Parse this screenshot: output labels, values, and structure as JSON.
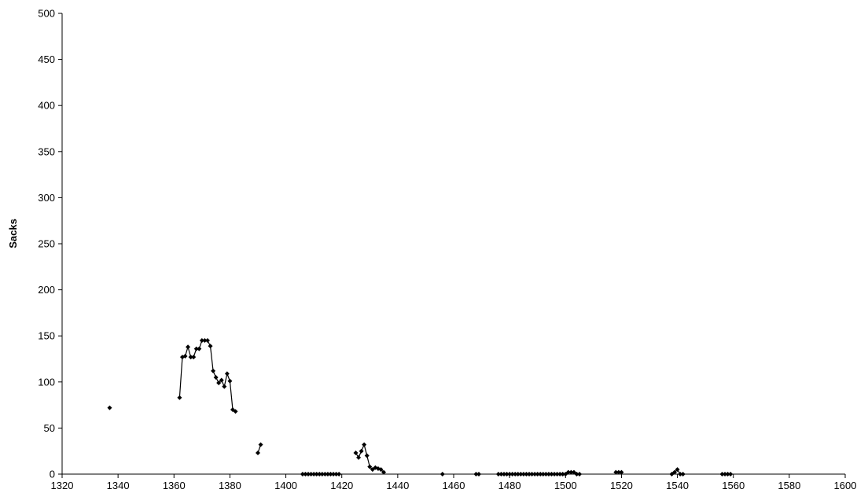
{
  "chart_data": {
    "type": "line",
    "title": "",
    "xlabel": "",
    "ylabel": "Sacks",
    "xlim": [
      1320,
      1600
    ],
    "ylim": [
      0,
      500
    ],
    "x_ticks": [
      1320,
      1340,
      1360,
      1380,
      1400,
      1420,
      1440,
      1460,
      1480,
      1500,
      1520,
      1540,
      1560,
      1580,
      1600
    ],
    "y_ticks": [
      0,
      50,
      100,
      150,
      200,
      250,
      300,
      350,
      400,
      450,
      500
    ],
    "grid": false,
    "legend": "none",
    "marker": "diamond",
    "line_color": "#000000",
    "series": [
      {
        "segments": [
          [
            [
              1337,
              72
            ]
          ],
          [
            [
              1362,
              83
            ],
            [
              1363,
              127
            ],
            [
              1364,
              128
            ],
            [
              1365,
              138
            ],
            [
              1366,
              127
            ],
            [
              1367,
              127
            ],
            [
              1368,
              136
            ],
            [
              1369,
              136
            ],
            [
              1370,
              145
            ],
            [
              1371,
              145
            ],
            [
              1372,
              145
            ],
            [
              1373,
              139
            ],
            [
              1374,
              112
            ],
            [
              1375,
              105
            ],
            [
              1376,
              99
            ],
            [
              1377,
              102
            ],
            [
              1378,
              95
            ],
            [
              1379,
              109
            ],
            [
              1380,
              101
            ],
            [
              1381,
              70
            ],
            [
              1382,
              68
            ]
          ],
          [
            [
              1390,
              23
            ],
            [
              1391,
              32
            ]
          ],
          [
            [
              1406,
              0
            ],
            [
              1407,
              0
            ],
            [
              1408,
              0
            ],
            [
              1409,
              0
            ],
            [
              1410,
              0
            ],
            [
              1411,
              0
            ],
            [
              1412,
              0
            ],
            [
              1413,
              0
            ],
            [
              1414,
              0
            ],
            [
              1415,
              0
            ],
            [
              1416,
              0
            ],
            [
              1417,
              0
            ],
            [
              1418,
              0
            ],
            [
              1419,
              0
            ]
          ],
          [
            [
              1425,
              23
            ],
            [
              1426,
              18
            ],
            [
              1427,
              25
            ],
            [
              1428,
              32
            ],
            [
              1429,
              20
            ],
            [
              1430,
              8
            ],
            [
              1431,
              5
            ],
            [
              1432,
              7
            ],
            [
              1433,
              6
            ],
            [
              1434,
              5
            ],
            [
              1435,
              2
            ]
          ],
          [
            [
              1456,
              0
            ]
          ],
          [
            [
              1468,
              0
            ],
            [
              1469,
              0
            ]
          ],
          [
            [
              1476,
              0
            ],
            [
              1477,
              0
            ],
            [
              1478,
              0
            ],
            [
              1479,
              0
            ],
            [
              1480,
              0
            ],
            [
              1481,
              0
            ],
            [
              1482,
              0
            ],
            [
              1483,
              0
            ],
            [
              1484,
              0
            ],
            [
              1485,
              0
            ],
            [
              1486,
              0
            ],
            [
              1487,
              0
            ],
            [
              1488,
              0
            ],
            [
              1489,
              0
            ],
            [
              1490,
              0
            ],
            [
              1491,
              0
            ],
            [
              1492,
              0
            ],
            [
              1493,
              0
            ],
            [
              1494,
              0
            ],
            [
              1495,
              0
            ],
            [
              1496,
              0
            ],
            [
              1497,
              0
            ],
            [
              1498,
              0
            ],
            [
              1499,
              0
            ],
            [
              1500,
              0
            ],
            [
              1501,
              2
            ],
            [
              1502,
              2
            ],
            [
              1503,
              2
            ],
            [
              1504,
              0
            ],
            [
              1505,
              0
            ]
          ],
          [
            [
              1518,
              2
            ],
            [
              1519,
              2
            ],
            [
              1520,
              2
            ]
          ],
          [
            [
              1538,
              0
            ],
            [
              1539,
              2
            ],
            [
              1540,
              5
            ],
            [
              1541,
              0
            ],
            [
              1542,
              0
            ]
          ],
          [
            [
              1556,
              0
            ],
            [
              1557,
              0
            ],
            [
              1558,
              0
            ],
            [
              1559,
              0
            ]
          ]
        ]
      }
    ]
  }
}
